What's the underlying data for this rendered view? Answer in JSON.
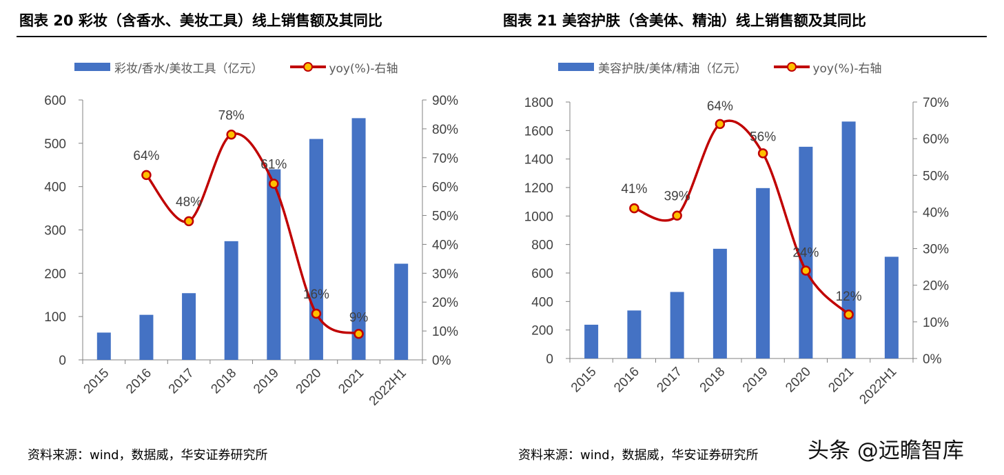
{
  "chart_data": [
    {
      "type": "bar",
      "title": "图表 20  彩妆（含香水、美妆工具）线上销售额及其同比",
      "categories": [
        "2015",
        "2016",
        "2017",
        "2018",
        "2019",
        "2020",
        "2021",
        "2022H1"
      ],
      "series": [
        {
          "name": "彩妆/香水/美妆工具（亿元）",
          "type": "bar",
          "axis": "left",
          "values": [
            63,
            104,
            154,
            274,
            440,
            510,
            558,
            222
          ]
        },
        {
          "name": "yoy(%)-右轴",
          "type": "line",
          "axis": "right",
          "values": [
            null,
            64,
            48,
            78,
            61,
            16,
            9,
            null
          ],
          "labels": [
            null,
            "64%",
            "48%",
            "78%",
            "61%",
            "16%",
            "9%",
            null
          ]
        }
      ],
      "ylim": [
        0,
        600
      ],
      "yticks": [
        "0",
        "100",
        "200",
        "300",
        "400",
        "500",
        "600"
      ],
      "y2lim": [
        0,
        90
      ],
      "y2ticks": [
        "0%",
        "10%",
        "20%",
        "30%",
        "40%",
        "50%",
        "60%",
        "70%",
        "80%",
        "90%"
      ],
      "legend": "top",
      "source": "资料来源：wind，数据威，华安证券研究所"
    },
    {
      "type": "bar",
      "title": "图表 21  美容护肤（含美体、精油）线上销售额及其同比",
      "categories": [
        "2015",
        "2016",
        "2017",
        "2018",
        "2019",
        "2020",
        "2021",
        "2022H1"
      ],
      "series": [
        {
          "name": "美容护肤/美体/精油（亿元）",
          "type": "bar",
          "axis": "left",
          "values": [
            237,
            337,
            467,
            770,
            1196,
            1486,
            1663,
            714
          ]
        },
        {
          "name": "yoy(%)-右轴",
          "type": "line",
          "axis": "right",
          "values": [
            null,
            41,
            39,
            64,
            56,
            24,
            12,
            null
          ],
          "labels": [
            null,
            "41%",
            "39%",
            "64%",
            "56%",
            "24%",
            "12%",
            null
          ]
        }
      ],
      "ylim": [
        0,
        1800
      ],
      "yticks": [
        "0",
        "200",
        "400",
        "600",
        "800",
        "1000",
        "1200",
        "1400",
        "1600",
        "1800"
      ],
      "y2lim": [
        0,
        70
      ],
      "y2ticks": [
        "0%",
        "10%",
        "20%",
        "30%",
        "40%",
        "50%",
        "60%",
        "70%"
      ],
      "legend": "top",
      "source": "资料来源：wind，数据威，华安证券研究所"
    }
  ],
  "colors": {
    "bar": "#4472C4",
    "line": "#C00000",
    "marker": "#FFC000",
    "axis": "#808080",
    "tick_text": "#404040"
  },
  "watermark": "头条 @远瞻智库"
}
